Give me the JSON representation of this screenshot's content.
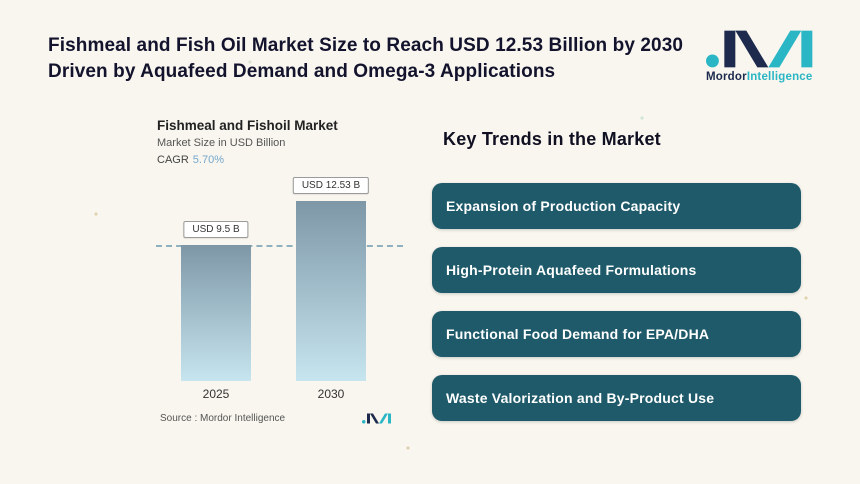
{
  "header": {
    "title_line1": "Fishmeal and Fish Oil Market Size to Reach USD 12.53 Billion by 2030",
    "title_line2": "Driven by Aquafeed Demand and Omega-3 Applications"
  },
  "brand": {
    "bold": "Mordor",
    "light": "Intelligence"
  },
  "chart": {
    "title": "Fishmeal and Fishoil Market",
    "subtitle": "Market Size in USD Billion",
    "cagr_label": "CAGR",
    "cagr_value": "5.70%",
    "source_label": "Source :  Mordor Intelligence"
  },
  "chart_data": {
    "type": "bar",
    "title": "Fishmeal and Fishoil Market",
    "subtitle": "Market Size in USD Billion",
    "cagr": "5.70%",
    "categories": [
      "2025",
      "2030"
    ],
    "values": [
      9.5,
      12.53
    ],
    "value_labels": [
      "USD 9.5 B",
      "USD 12.53 B"
    ],
    "ylabel": "Market Size in USD Billion",
    "ylim": [
      0,
      12.53
    ],
    "grid": false,
    "legend": "none",
    "dashed_reference_line_at": 9.5
  },
  "trends": {
    "heading": "Key Trends in the Market",
    "items": [
      "Expansion of Production Capacity",
      "High-Protein Aquafeed Formulations",
      "Functional Food Demand for EPA/DHA",
      "Waste Valorization and By-Product Use"
    ]
  },
  "colors": {
    "background": "#f8f6ee",
    "headline_text": "#13132d",
    "trend_card": "#1e5a6a",
    "trend_card_text": "#ffffff",
    "brand_navy": "#1d2a4e",
    "brand_teal": "#2ab6c5",
    "cagr_value": "#74a7cd",
    "bar_gradient_top": "#7e97a7",
    "bar_gradient_bottom": "#c6e5ef",
    "dashed_line": "#8fb0bf"
  }
}
